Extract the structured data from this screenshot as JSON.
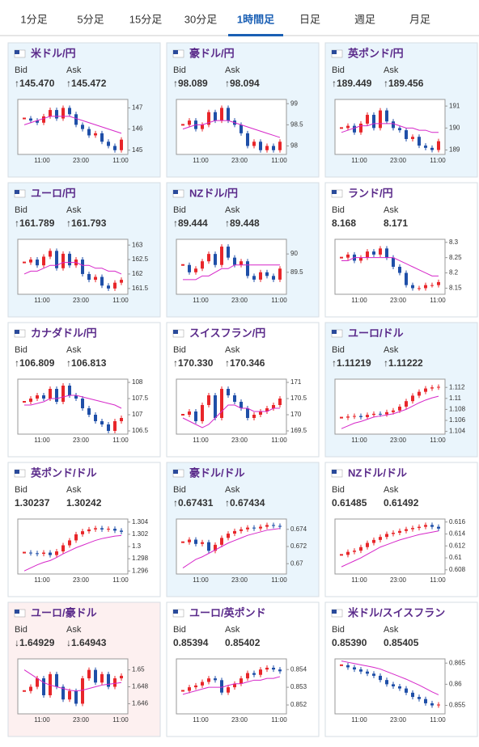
{
  "tabs": [
    "1分足",
    "5分足",
    "15分足",
    "30分足",
    "1時間足",
    "日足",
    "週足",
    "月足"
  ],
  "active_tab": 4,
  "labels": {
    "bid": "Bid",
    "ask": "Ask",
    "times": [
      "11:00",
      "23:00",
      "11:00"
    ]
  },
  "colors": {
    "up": "#e8262a",
    "down": "#1f4fa8",
    "ma": "#d627c9",
    "ma2": "#3ab0d6"
  },
  "panels": [
    {
      "pair": "米ドル/円",
      "bid": "↑145.470",
      "ask": "↑145.472",
      "bg": "#eaf5fc",
      "ylim": [
        144.8,
        147.4
      ],
      "yticks": [
        145,
        146,
        147
      ],
      "closes": [
        146.5,
        146.4,
        146.3,
        146.6,
        146.9,
        146.5,
        147.0,
        146.7,
        146.2,
        146.0,
        145.7,
        145.8,
        145.4,
        145.2,
        145.0,
        145.5
      ],
      "ma": [
        146.2,
        146.3,
        146.4,
        146.5,
        146.6,
        146.6,
        146.6,
        146.6,
        146.5,
        146.4,
        146.3,
        146.2,
        146.1,
        146.0,
        145.9,
        145.8
      ]
    },
    {
      "pair": "豪ドル/円",
      "bid": "↑98.089",
      "ask": "↑98.094",
      "bg": "#eaf5fc",
      "ylim": [
        97.8,
        99.1
      ],
      "yticks": [
        98,
        98.5,
        99
      ],
      "closes": [
        98.5,
        98.6,
        98.4,
        98.5,
        98.8,
        98.6,
        98.9,
        98.6,
        98.5,
        98.3,
        98.0,
        98.1,
        97.9,
        98.0,
        97.9,
        98.1
      ],
      "ma": [
        98.4,
        98.45,
        98.5,
        98.5,
        98.55,
        98.6,
        98.6,
        98.6,
        98.55,
        98.5,
        98.45,
        98.4,
        98.35,
        98.3,
        98.25,
        98.2
      ]
    },
    {
      "pair": "英ポンド/円",
      "bid": "↑189.449",
      "ask": "↑189.456",
      "bg": "#eaf5fc",
      "ylim": [
        188.8,
        191.3
      ],
      "yticks": [
        189,
        190,
        191
      ],
      "closes": [
        190.0,
        190.1,
        189.8,
        190.2,
        190.6,
        190.0,
        190.8,
        190.3,
        190.0,
        189.9,
        189.5,
        189.6,
        189.2,
        189.1,
        189.0,
        189.4
      ],
      "ma": [
        189.8,
        189.9,
        190.0,
        190.1,
        190.1,
        190.2,
        190.2,
        190.2,
        190.2,
        190.1,
        190.0,
        190.0,
        189.9,
        189.9,
        189.8,
        189.8
      ]
    },
    {
      "pair": "ユーロ/円",
      "bid": "↑161.789",
      "ask": "↑161.793",
      "bg": "#eaf5fc",
      "ylim": [
        161.3,
        163.2
      ],
      "yticks": [
        161.5,
        162,
        162.5,
        163
      ],
      "closes": [
        162.4,
        162.5,
        162.3,
        162.6,
        162.8,
        162.2,
        162.7,
        162.3,
        162.5,
        162.0,
        161.8,
        161.9,
        161.6,
        161.5,
        161.7,
        161.8
      ],
      "ma": [
        162.0,
        162.1,
        162.1,
        162.2,
        162.3,
        162.3,
        162.4,
        162.4,
        162.4,
        162.3,
        162.3,
        162.2,
        162.2,
        162.1,
        162.1,
        162.0
      ]
    },
    {
      "pair": "NZドル/円",
      "bid": "↑89.444",
      "ask": "↑89.448",
      "bg": "#eaf5fc",
      "ylim": [
        88.9,
        90.4
      ],
      "yticks": [
        89.5,
        90
      ],
      "closes": [
        89.7,
        89.5,
        89.6,
        89.8,
        90.0,
        89.7,
        90.2,
        89.9,
        89.7,
        89.8,
        89.4,
        89.3,
        89.5,
        89.4,
        89.3,
        89.6
      ],
      "ma": [
        89.3,
        89.3,
        89.3,
        89.4,
        89.4,
        89.5,
        89.6,
        89.6,
        89.7,
        89.7,
        89.7,
        89.7,
        89.7,
        89.7,
        89.7,
        89.7
      ]
    },
    {
      "pair": "ランド/円",
      "bid": "8.168",
      "ask": "8.171",
      "bg": "#ffffff",
      "ylim": [
        8.13,
        8.31
      ],
      "yticks": [
        8.15,
        8.2,
        8.25,
        8.3
      ],
      "closes": [
        8.25,
        8.26,
        8.24,
        8.25,
        8.27,
        8.26,
        8.28,
        8.25,
        8.22,
        8.2,
        8.16,
        8.15,
        8.15,
        8.16,
        8.16,
        8.17
      ],
      "ma": [
        8.24,
        8.24,
        8.25,
        8.25,
        8.25,
        8.25,
        8.25,
        8.25,
        8.25,
        8.24,
        8.23,
        8.22,
        8.21,
        8.2,
        8.19,
        8.19
      ]
    },
    {
      "pair": "カナダドル/円",
      "bid": "↑106.809",
      "ask": "↑106.813",
      "bg": "#ffffff",
      "ylim": [
        106.4,
        108.1
      ],
      "yticks": [
        106.5,
        107,
        107.5,
        108
      ],
      "closes": [
        107.4,
        107.5,
        107.6,
        107.5,
        107.8,
        107.4,
        107.9,
        107.6,
        107.5,
        107.2,
        107.0,
        106.8,
        106.7,
        106.5,
        106.8,
        106.9
      ],
      "ma": [
        107.3,
        107.3,
        107.35,
        107.4,
        107.5,
        107.5,
        107.55,
        107.6,
        107.6,
        107.55,
        107.5,
        107.45,
        107.4,
        107.35,
        107.3,
        107.2
      ]
    },
    {
      "pair": "スイスフラン/円",
      "bid": "↑170.330",
      "ask": "↑170.346",
      "bg": "#ffffff",
      "ylim": [
        169.4,
        171.1
      ],
      "yticks": [
        169.5,
        170,
        170.5,
        171
      ],
      "closes": [
        170.0,
        170.1,
        169.8,
        170.3,
        170.6,
        169.9,
        170.8,
        170.6,
        170.4,
        170.2,
        169.9,
        170.0,
        170.1,
        170.2,
        170.3,
        170.5
      ],
      "ma": [
        169.9,
        169.8,
        169.7,
        169.6,
        169.7,
        169.9,
        170.1,
        170.3,
        170.3,
        170.2,
        170.2,
        170.1,
        170.1,
        170.1,
        170.2,
        170.2
      ]
    },
    {
      "pair": "ユーロ/ドル",
      "bid": "↑1.11219",
      "ask": "↑1.11222",
      "bg": "#eaf5fc",
      "ylim": [
        1.1035,
        1.1135
      ],
      "yticks": [
        1.104,
        1.106,
        1.108,
        1.11,
        1.112
      ],
      "closes": [
        1.1065,
        1.1067,
        1.1068,
        1.1066,
        1.107,
        1.1072,
        1.1071,
        1.1075,
        1.1078,
        1.1085,
        1.1095,
        1.1105,
        1.1112,
        1.1118,
        1.112,
        1.1121
      ],
      "ma": [
        1.1045,
        1.105,
        1.1055,
        1.1058,
        1.1062,
        1.1066,
        1.1068,
        1.107,
        1.1072,
        1.1076,
        1.108,
        1.1086,
        1.1092,
        1.1097,
        1.1101,
        1.1104
      ]
    },
    {
      "pair": "英ポンド/ドル",
      "bid": "1.30237",
      "ask": "1.30242",
      "bg": "#ffffff",
      "ylim": [
        1.2955,
        1.3045
      ],
      "yticks": [
        1.296,
        1.298,
        1.3,
        1.302,
        1.304
      ],
      "closes": [
        1.299,
        1.2989,
        1.2988,
        1.299,
        1.2986,
        1.2992,
        1.3002,
        1.301,
        1.302,
        1.3025,
        1.3028,
        1.303,
        1.3028,
        1.3029,
        1.3026,
        1.3024
      ],
      "ma": [
        1.296,
        1.2965,
        1.297,
        1.2974,
        1.2977,
        1.2982,
        1.2988,
        1.2993,
        1.2998,
        1.3002,
        1.3006,
        1.301,
        1.3013,
        1.3015,
        1.3017,
        1.3018
      ]
    },
    {
      "pair": "豪ドル/ドル",
      "bid": "↑0.67431",
      "ask": "↑0.67434",
      "bg": "#eaf5fc",
      "ylim": [
        0.6688,
        0.6752
      ],
      "yticks": [
        0.67,
        0.672,
        0.674
      ],
      "closes": [
        0.6725,
        0.6728,
        0.6723,
        0.6725,
        0.6715,
        0.6722,
        0.673,
        0.6735,
        0.6738,
        0.674,
        0.6742,
        0.6741,
        0.6743,
        0.6745,
        0.6744,
        0.6743
      ],
      "ma": [
        0.6695,
        0.67,
        0.6705,
        0.6708,
        0.6712,
        0.6716,
        0.672,
        0.6724,
        0.6727,
        0.673,
        0.6733,
        0.6735,
        0.6737,
        0.6739,
        0.674,
        0.6741
      ]
    },
    {
      "pair": "NZドル/ドル",
      "bid": "0.61485",
      "ask": "0.61492",
      "bg": "#ffffff",
      "ylim": [
        0.6073,
        0.6165
      ],
      "yticks": [
        0.608,
        0.61,
        0.612,
        0.614,
        0.616
      ],
      "closes": [
        0.6105,
        0.611,
        0.6112,
        0.6118,
        0.6125,
        0.613,
        0.6135,
        0.614,
        0.6142,
        0.6145,
        0.6148,
        0.615,
        0.6152,
        0.6155,
        0.6152,
        0.6149
      ],
      "ma": [
        0.6085,
        0.609,
        0.6095,
        0.61,
        0.6106,
        0.6112,
        0.6118,
        0.6122,
        0.6126,
        0.613,
        0.6133,
        0.6136,
        0.6139,
        0.6141,
        0.6143,
        0.6145
      ]
    },
    {
      "pair": "ユーロ/豪ドル",
      "bid": "↓1.64929",
      "ask": "↓1.64943",
      "bg": "#fdf0f0",
      "ylim": [
        1.6448,
        1.6513
      ],
      "yticks": [
        1.646,
        1.648,
        1.65
      ],
      "closes": [
        1.6475,
        1.648,
        1.649,
        1.647,
        1.6495,
        1.648,
        1.6465,
        1.6475,
        1.646,
        1.649,
        1.65,
        1.6485,
        1.6495,
        1.648,
        1.649,
        1.6493
      ],
      "ma": [
        1.65,
        1.6495,
        1.649,
        1.6485,
        1.6482,
        1.648,
        1.6478,
        1.6476,
        1.6475,
        1.6476,
        1.6478,
        1.648,
        1.6482,
        1.6483,
        1.6484,
        1.6485
      ]
    },
    {
      "pair": "ユーロ/英ポンド",
      "bid": "0.85394",
      "ask": "0.85402",
      "bg": "#ffffff",
      "ylim": [
        0.8515,
        0.8546
      ],
      "yticks": [
        0.852,
        0.853,
        0.854
      ],
      "closes": [
        0.8528,
        0.853,
        0.8531,
        0.8533,
        0.8535,
        0.8534,
        0.8527,
        0.853,
        0.8532,
        0.8535,
        0.8538,
        0.8537,
        0.854,
        0.8541,
        0.854,
        0.8539
      ],
      "ma": [
        0.8526,
        0.8527,
        0.8528,
        0.8529,
        0.853,
        0.853,
        0.853,
        0.8531,
        0.8532,
        0.8532,
        0.8533,
        0.8534,
        0.8534,
        0.8535,
        0.8535,
        0.8536
      ]
    },
    {
      "pair": "米ドル/スイスフラン",
      "bid": "0.85390",
      "ask": "0.85405",
      "bg": "#ffffff",
      "ylim": [
        0.853,
        0.866
      ],
      "yticks": [
        0.855,
        0.86,
        0.865
      ],
      "closes": [
        0.8645,
        0.864,
        0.8635,
        0.863,
        0.8625,
        0.862,
        0.861,
        0.86,
        0.8595,
        0.859,
        0.858,
        0.857,
        0.8565,
        0.8555,
        0.855,
        0.8552
      ],
      "ma": [
        0.8655,
        0.8652,
        0.8649,
        0.8646,
        0.8643,
        0.864,
        0.8636,
        0.863,
        0.8624,
        0.8618,
        0.8612,
        0.8605,
        0.8598,
        0.859,
        0.8582,
        0.8575
      ]
    }
  ]
}
